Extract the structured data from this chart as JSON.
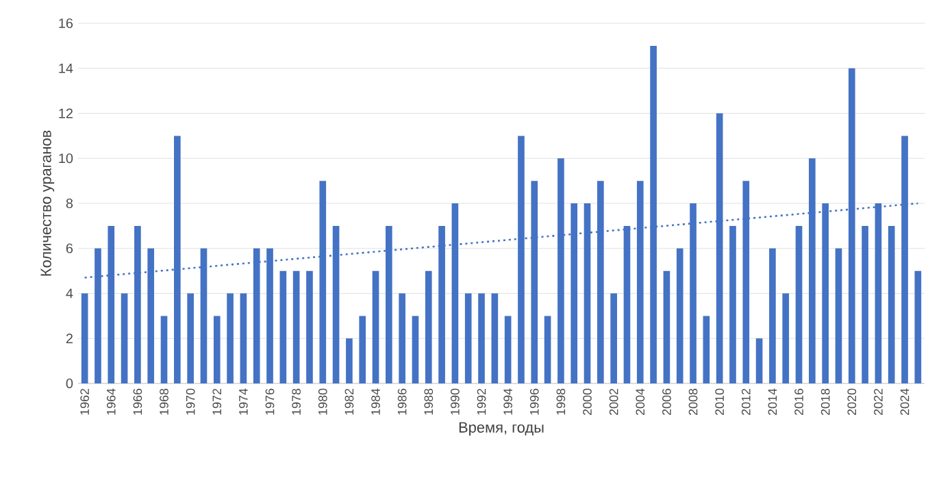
{
  "chart_data": {
    "type": "bar",
    "xlabel": "Время, годы",
    "ylabel": "Количество ураганов",
    "x": [
      1962,
      1963,
      1964,
      1965,
      1966,
      1967,
      1968,
      1969,
      1970,
      1971,
      1972,
      1973,
      1974,
      1975,
      1976,
      1977,
      1978,
      1979,
      1980,
      1981,
      1982,
      1983,
      1984,
      1985,
      1986,
      1987,
      1988,
      1989,
      1990,
      1991,
      1992,
      1993,
      1994,
      1995,
      1996,
      1997,
      1998,
      1999,
      2000,
      2001,
      2002,
      2003,
      2004,
      2005,
      2006,
      2007,
      2008,
      2009,
      2010,
      2011,
      2012,
      2013,
      2014,
      2015,
      2016,
      2017,
      2018,
      2019,
      2020,
      2021,
      2022,
      2023,
      2024,
      2025
    ],
    "series": [
      {
        "color": "#4472c4",
        "values": [
          4,
          6,
          7,
          4,
          7,
          6,
          3,
          11,
          4,
          6,
          3,
          4,
          4,
          6,
          6,
          5,
          5,
          5,
          9,
          7,
          2,
          3,
          5,
          7,
          4,
          3,
          5,
          7,
          8,
          4,
          4,
          4,
          3,
          11,
          9,
          3,
          10,
          8,
          8,
          9,
          4,
          7,
          9,
          15,
          5,
          6,
          8,
          3,
          12,
          7,
          9,
          2,
          6,
          4,
          7,
          10,
          8,
          6,
          14,
          7,
          8,
          7,
          11,
          5
        ]
      },
      {
        "type": "line",
        "color": "#4472c4",
        "line_style": "dotted",
        "marker": "none",
        "x": [
          1962,
          2025
        ],
        "values": [
          4.7,
          8.0
        ]
      }
    ],
    "xlim": [
      1961.5,
      2025.5
    ],
    "ylim": [
      0,
      16
    ],
    "xticks": [
      1962,
      1964,
      1966,
      1968,
      1970,
      1972,
      1974,
      1976,
      1978,
      1980,
      1982,
      1984,
      1986,
      1988,
      1990,
      1992,
      1994,
      1996,
      1998,
      2000,
      2002,
      2004,
      2006,
      2008,
      2010,
      2012,
      2014,
      2016,
      2018,
      2020,
      2022,
      2024
    ],
    "yticks": [
      0,
      2,
      4,
      6,
      8,
      10,
      12,
      14,
      16
    ],
    "grid": "y"
  }
}
